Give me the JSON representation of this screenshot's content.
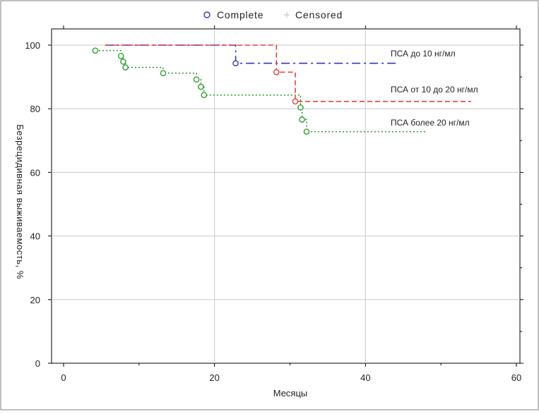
{
  "chart_data": {
    "type": "line",
    "subtype": "kaplan-meier",
    "title": "",
    "xlabel": "Месяцы",
    "ylabel": "Безрецидивная выживаемость, %",
    "xlim": [
      -2,
      60
    ],
    "ylim": [
      0,
      100
    ],
    "xticks": [
      0,
      20,
      40,
      60
    ],
    "yticks": [
      0,
      20,
      40,
      60,
      80,
      100
    ],
    "grid": true,
    "legend": {
      "placement": "top",
      "items": [
        {
          "label": "Complete",
          "marker": "circle",
          "color": "#3333cc"
        },
        {
          "label": "Censored",
          "marker": "plus",
          "color": "#cccccc"
        }
      ]
    },
    "series": [
      {
        "name": "ПСА до 10 нг/мл",
        "color": "#3333cc",
        "dash": "12,5,3,5",
        "steps": [
          [
            5.5,
            100
          ],
          [
            22.8,
            100
          ],
          [
            22.8,
            94.3
          ],
          [
            44,
            94.3
          ]
        ],
        "complete": [
          [
            22.8,
            94.3
          ]
        ]
      },
      {
        "name": "ПСА от 10 до 20 нг/мл",
        "color": "#e64040",
        "dash": "7,4",
        "steps": [
          [
            5.5,
            100
          ],
          [
            28.2,
            100
          ],
          [
            28.2,
            91.5
          ],
          [
            30.7,
            91.5
          ],
          [
            30.7,
            82.3
          ],
          [
            54,
            82.3
          ]
        ],
        "complete": [
          [
            28.2,
            91.5
          ],
          [
            30.7,
            82.3
          ]
        ]
      },
      {
        "name": "ПСА более 20 нг/мл",
        "color": "#2fa02f",
        "dash": "2,3",
        "steps": [
          [
            4.2,
            98.3
          ],
          [
            7.6,
            98.3
          ],
          [
            7.6,
            96.6
          ],
          [
            7.9,
            96.6
          ],
          [
            7.9,
            94.8
          ],
          [
            8.2,
            94.8
          ],
          [
            8.2,
            93.0
          ],
          [
            13.2,
            93.0
          ],
          [
            13.2,
            91.2
          ],
          [
            17.6,
            91.2
          ],
          [
            17.6,
            89.2
          ],
          [
            18.2,
            89.2
          ],
          [
            18.2,
            86.9
          ],
          [
            18.6,
            86.9
          ],
          [
            18.6,
            84.3
          ],
          [
            31.4,
            84.3
          ],
          [
            31.4,
            80.4
          ],
          [
            31.6,
            80.4
          ],
          [
            31.6,
            76.6
          ],
          [
            32.2,
            76.6
          ],
          [
            32.2,
            72.8
          ],
          [
            48,
            72.8
          ]
        ],
        "complete": [
          [
            4.2,
            98.3
          ],
          [
            7.6,
            96.6
          ],
          [
            7.9,
            94.8
          ],
          [
            8.2,
            93.0
          ],
          [
            13.2,
            91.2
          ],
          [
            17.6,
            89.2
          ],
          [
            18.2,
            86.9
          ],
          [
            18.6,
            84.3
          ],
          [
            31.4,
            80.4
          ],
          [
            31.6,
            76.6
          ],
          [
            32.2,
            72.8
          ]
        ]
      }
    ],
    "annotations": [
      {
        "text": "ПСА до 10 нг/мл",
        "series": 0
      },
      {
        "text": "ПСА от 10 до 20 нг/мл",
        "series": 1
      },
      {
        "text": "ПСА более 20 нг/мл",
        "series": 2
      }
    ]
  }
}
